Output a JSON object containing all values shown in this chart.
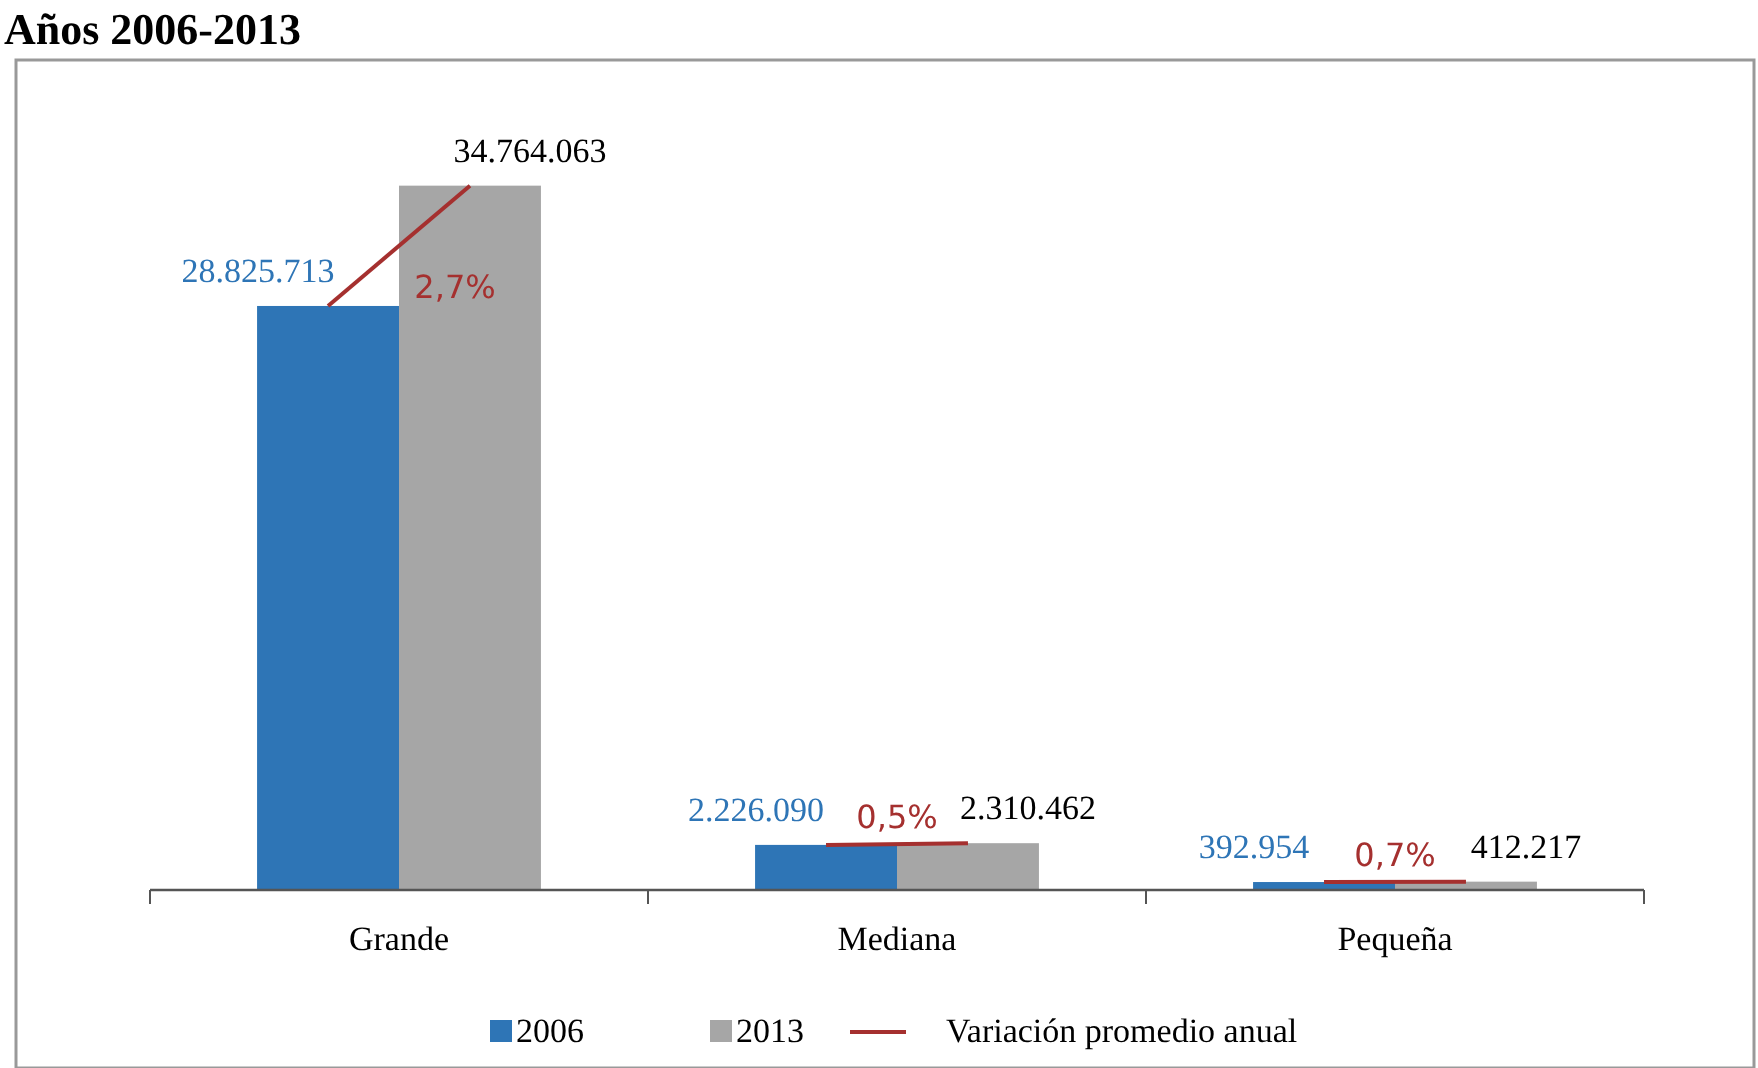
{
  "chart_data": {
    "type": "bar",
    "title": "Años 2006-2013",
    "categories": [
      "Grande",
      "Mediana",
      "Pequeña"
    ],
    "series": [
      {
        "name": "2006",
        "color": "#2e75b6",
        "values": [
          28825713,
          2226090,
          392954
        ],
        "value_labels": [
          "28.825.713",
          "2.226.090",
          "392.954"
        ]
      },
      {
        "name": "2013",
        "color": "#a6a6a6",
        "values": [
          34764063,
          2310462,
          412217
        ],
        "value_labels": [
          "34.764.063",
          "2.310.462",
          "412.217"
        ]
      }
    ],
    "annotations": [
      "Variación promedio anual",
      {
        "text": "2,7%",
        "x": "Grande",
        "y": 31795000
      },
      {
        "text": "0,5%",
        "x": "Mediana",
        "y": 2268000
      },
      {
        "text": "0,7%",
        "x": "Pequeña",
        "y": 402000
      }
    ],
    "legend": "bottom",
    "tick_labels": "x"
  }
}
